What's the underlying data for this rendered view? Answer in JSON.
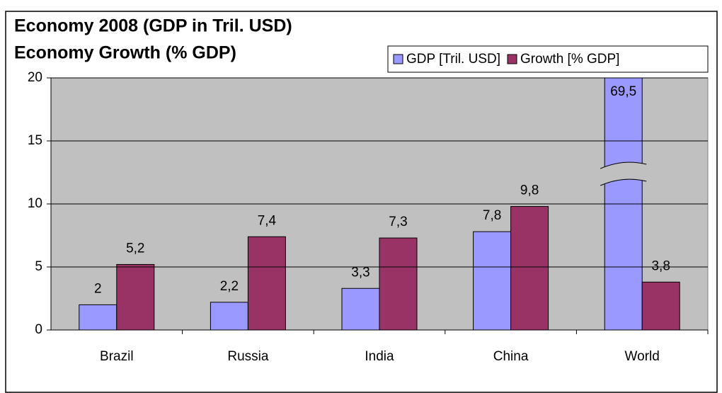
{
  "chart_data": {
    "type": "bar",
    "title": "Economy 2008 (GDP in Tril. USD)",
    "subtitle": "Economy Growth (% GDP)",
    "categories": [
      "Brazil",
      "Russia",
      "India",
      "China",
      "World"
    ],
    "series": [
      {
        "name": "GDP [Tril. USD]",
        "color": "#9999ff",
        "values": [
          2,
          2.2,
          3.3,
          7.8,
          69.5
        ],
        "value_labels": [
          "2",
          "2,2",
          "3,3",
          "7,8",
          "69,5"
        ]
      },
      {
        "name": "Growth [% GDP]",
        "color": "#993366",
        "values": [
          5.2,
          7.4,
          7.3,
          9.8,
          3.8
        ],
        "value_labels": [
          "5,2",
          "7,4",
          "7,3",
          "9,8",
          "3,8"
        ]
      }
    ],
    "ylim": [
      0,
      20
    ],
    "yticks": [
      0,
      5,
      10,
      15,
      20
    ],
    "grid": true,
    "legend": "top-right"
  }
}
